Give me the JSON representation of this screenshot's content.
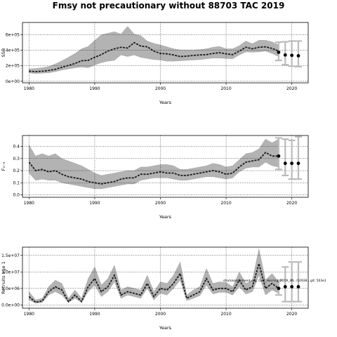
{
  "title": "Fmsy not precautionary without 88703 TAC 2019",
  "colors": {
    "band": "#b3b3b3",
    "line": "#000000",
    "err": "#bbbbbb",
    "median": "#1a1a1a"
  },
  "chart_data": [
    {
      "type": "line",
      "ylabel": "SSB",
      "xlabel": "Years",
      "xlim": [
        1979,
        2022.5
      ],
      "ylim": [
        -20000,
        760000
      ],
      "xticks": [
        1980,
        1990,
        2000,
        2010,
        2020
      ],
      "yticks": [
        0,
        200000,
        400000,
        600000
      ],
      "ytick_labels": [
        "0e+00",
        "2e+05",
        "4e+05",
        "6e+05"
      ],
      "grid": true,
      "x": [
        1980,
        1981,
        1982,
        1983,
        1984,
        1985,
        1986,
        1987,
        1988,
        1989,
        1990,
        1991,
        1992,
        1993,
        1994,
        1995,
        1996,
        1997,
        1998,
        1999,
        2000,
        2001,
        2002,
        2003,
        2004,
        2005,
        2006,
        2007,
        2008,
        2009,
        2010,
        2011,
        2012,
        2013,
        2014,
        2015,
        2016,
        2017,
        2018
      ],
      "median": [
        130000,
        125000,
        130000,
        140000,
        155000,
        180000,
        205000,
        230000,
        265000,
        270000,
        310000,
        345000,
        390000,
        420000,
        440000,
        430000,
        500000,
        455000,
        445000,
        390000,
        360000,
        355000,
        340000,
        320000,
        325000,
        335000,
        340000,
        345000,
        360000,
        370000,
        355000,
        345000,
        390000,
        440000,
        420000,
        440000,
        445000,
        425000,
        390000
      ],
      "lower": [
        110000,
        100000,
        105000,
        110000,
        125000,
        145000,
        160000,
        175000,
        185000,
        175000,
        210000,
        240000,
        260000,
        270000,
        340000,
        320000,
        340000,
        310000,
        295000,
        280000,
        275000,
        260000,
        260000,
        265000,
        270000,
        275000,
        280000,
        290000,
        300000,
        300000,
        295000,
        290000,
        340000,
        380000,
        375000,
        380000,
        390000,
        360000,
        320000
      ],
      "upper": [
        160000,
        165000,
        175000,
        190000,
        225000,
        265000,
        310000,
        360000,
        420000,
        450000,
        530000,
        600000,
        620000,
        640000,
        610000,
        710000,
        610000,
        590000,
        520000,
        490000,
        470000,
        445000,
        420000,
        405000,
        405000,
        405000,
        410000,
        420000,
        440000,
        450000,
        420000,
        420000,
        460000,
        520000,
        485000,
        530000,
        530000,
        510000,
        470000
      ],
      "projections": [
        {
          "x": 2018,
          "y": 375000,
          "lo": 270000,
          "hi": 505000
        },
        {
          "x": 2019,
          "y": 340000,
          "lo": 215000,
          "hi": 510000
        },
        {
          "x": 2020,
          "y": 335000,
          "lo": 195000,
          "hi": 520000
        },
        {
          "x": 2021,
          "y": 330000,
          "lo": 190000,
          "hi": 520000
        }
      ]
    },
    {
      "type": "line",
      "ylabel": "F₃₋₉",
      "xlabel": "Years",
      "xlim": [
        1979,
        2022.5
      ],
      "ylim": [
        -0.02,
        0.49
      ],
      "xticks": [
        1980,
        1990,
        2000,
        2010,
        2020
      ],
      "yticks": [
        0.0,
        0.1,
        0.2,
        0.3,
        0.4
      ],
      "ytick_labels": [
        "0.0",
        "0.1",
        "0.2",
        "0.3",
        "0.4"
      ],
      "grid": true,
      "x": [
        1980,
        1981,
        1982,
        1983,
        1984,
        1985,
        1986,
        1987,
        1988,
        1989,
        1990,
        1991,
        1992,
        1993,
        1994,
        1995,
        1996,
        1997,
        1998,
        1999,
        2000,
        2001,
        2002,
        2003,
        2004,
        2005,
        2006,
        2007,
        2008,
        2009,
        2010,
        2011,
        2012,
        2013,
        2014,
        2015,
        2016,
        2017,
        2018
      ],
      "median": [
        0.27,
        0.2,
        0.21,
        0.19,
        0.2,
        0.17,
        0.15,
        0.14,
        0.13,
        0.11,
        0.1,
        0.09,
        0.1,
        0.11,
        0.13,
        0.14,
        0.14,
        0.17,
        0.17,
        0.18,
        0.19,
        0.18,
        0.18,
        0.16,
        0.16,
        0.17,
        0.18,
        0.19,
        0.2,
        0.19,
        0.17,
        0.18,
        0.23,
        0.27,
        0.28,
        0.29,
        0.35,
        0.32,
        0.32
      ],
      "lower": [
        0.18,
        0.12,
        0.13,
        0.12,
        0.12,
        0.1,
        0.09,
        0.08,
        0.07,
        0.06,
        0.05,
        0.05,
        0.06,
        0.07,
        0.08,
        0.09,
        0.09,
        0.12,
        0.13,
        0.14,
        0.14,
        0.14,
        0.13,
        0.12,
        0.12,
        0.13,
        0.14,
        0.15,
        0.15,
        0.14,
        0.13,
        0.14,
        0.19,
        0.22,
        0.23,
        0.23,
        0.27,
        0.24,
        0.23
      ],
      "upper": [
        0.41,
        0.32,
        0.34,
        0.32,
        0.34,
        0.3,
        0.28,
        0.26,
        0.24,
        0.21,
        0.18,
        0.16,
        0.17,
        0.18,
        0.19,
        0.2,
        0.2,
        0.23,
        0.23,
        0.24,
        0.25,
        0.25,
        0.24,
        0.21,
        0.21,
        0.22,
        0.23,
        0.24,
        0.26,
        0.25,
        0.23,
        0.24,
        0.29,
        0.34,
        0.35,
        0.38,
        0.46,
        0.43,
        0.46
      ],
      "projections": [
        {
          "x": 2018,
          "y": 0.32,
          "lo": 0.21,
          "hi": 0.47
        },
        {
          "x": 2019,
          "y": 0.26,
          "lo": 0.16,
          "hi": 0.46
        },
        {
          "x": 2020,
          "y": 0.26,
          "lo": 0.13,
          "hi": 0.45
        },
        {
          "x": 2021,
          "y": 0.26,
          "lo": 0.13,
          "hi": 0.48
        }
      ]
    },
    {
      "type": "line",
      "ylabel": "Recruits age 1",
      "xlabel": "Years",
      "xlim": [
        1979,
        2022.5
      ],
      "ylim": [
        -1000000,
        17500000
      ],
      "xticks": [
        1980,
        1990,
        2000,
        2010,
        2020
      ],
      "yticks": [
        0,
        5000000,
        10000000,
        15000000
      ],
      "ytick_labels": [
        "0.0e+00",
        "5.0e+06",
        "1.0e+07",
        "1.5e+07"
      ],
      "grid": true,
      "x": [
        1980,
        1981,
        1982,
        1983,
        1984,
        1985,
        1986,
        1987,
        1988,
        1989,
        1990,
        1991,
        1992,
        1993,
        1994,
        1995,
        1996,
        1997,
        1998,
        1999,
        2000,
        2001,
        2002,
        2003,
        2004,
        2005,
        2006,
        2007,
        2008,
        2009,
        2010,
        2011,
        2012,
        2013,
        2014,
        2015,
        2016,
        2017,
        2018
      ],
      "median": [
        2500000,
        800000,
        1200000,
        4000000,
        5500000,
        4500000,
        1000000,
        3000000,
        1000000,
        5500000,
        8000000,
        4000000,
        5500000,
        9000000,
        3000000,
        4000000,
        3500000,
        3000000,
        6500000,
        2500000,
        5000000,
        4500000,
        6500000,
        9500000,
        2000000,
        3000000,
        4000000,
        8000000,
        4500000,
        5000000,
        5000000,
        4000000,
        7500000,
        4500000,
        5500000,
        12500000,
        5000000,
        6500000,
        5000000
      ],
      "lower": [
        1500000,
        500000,
        700000,
        3000000,
        4000000,
        3000000,
        700000,
        2000000,
        700000,
        4000000,
        6000000,
        2500000,
        4000000,
        7000000,
        2000000,
        3000000,
        2500000,
        2000000,
        5000000,
        1500000,
        3500000,
        3000000,
        5000000,
        7500000,
        1300000,
        2000000,
        2800000,
        6000000,
        3300000,
        3800000,
        3800000,
        3000000,
        5500000,
        3300000,
        4000000,
        9000000,
        3000000,
        4500000,
        3500000
      ],
      "upper": [
        4000000,
        1500000,
        2000000,
        5500000,
        7500000,
        6500000,
        2000000,
        4500000,
        2000000,
        8000000,
        11500000,
        6000000,
        8000000,
        12000000,
        4500000,
        5500000,
        5000000,
        4500000,
        9000000,
        4000000,
        7000000,
        6500000,
        9000000,
        13000000,
        3000000,
        4500000,
        5500000,
        11000000,
        6500000,
        7000000,
        6800000,
        5500000,
        10000000,
        6500000,
        7500000,
        17000000,
        7500000,
        9500000,
        7000000
      ],
      "projections": [
        {
          "x": 2018,
          "y": 5000000,
          "lo": 3000000,
          "hi": 7500000
        },
        {
          "x": 2019,
          "y": 5500000,
          "lo": 1000000,
          "hi": 11500000
        },
        {
          "x": 2020,
          "y": 5500000,
          "lo": 1000000,
          "hi": 13000000
        },
        {
          "x": 2021,
          "y": 5500000,
          "lo": 1000000,
          "hi": 13000000
        }
      ],
      "annotation": "stockassessment.org, Gulf_Herring_2019_4N, r10938 , git: 503e1"
    }
  ]
}
